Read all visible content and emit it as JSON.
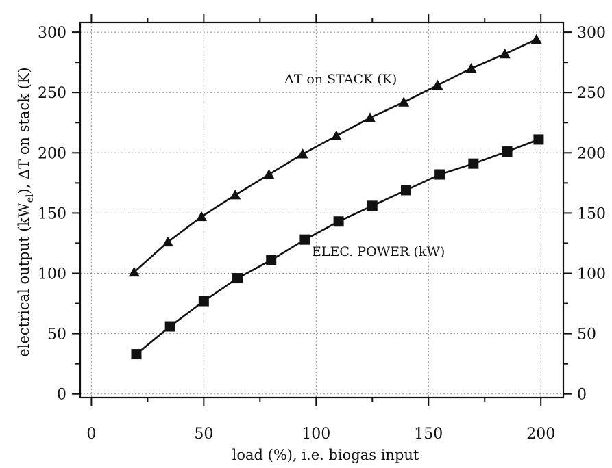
{
  "chart_data": {
    "type": "line",
    "x_label": "load (%), i.e. biogas input",
    "y_label_left": "electrical output (kW",
    "y_label_left_sub": "el",
    "y_label_left_tail": "), ΔT on stack (K)",
    "xlim": [
      -5,
      210
    ],
    "ylim": [
      -3,
      308
    ],
    "x_ticks": [
      0,
      50,
      100,
      150,
      200
    ],
    "y_ticks_left": [
      0,
      50,
      100,
      150,
      200,
      250,
      300
    ],
    "y_ticks_right": [
      0,
      50,
      100,
      150,
      200,
      250,
      300
    ],
    "grid": true,
    "series": [
      {
        "name": "ΔT on STACK (K)",
        "marker": "triangle",
        "x": [
          19,
          34,
          49,
          64,
          79,
          94,
          109,
          124,
          139,
          154,
          169,
          184,
          198
        ],
        "y": [
          101,
          126,
          147,
          165,
          182,
          199,
          214,
          229,
          242,
          256,
          270,
          282,
          294
        ]
      },
      {
        "name": "ELEC. POWER (kW)",
        "marker": "square",
        "x": [
          20,
          35,
          50,
          65,
          80,
          95,
          110,
          125,
          140,
          155,
          170,
          185,
          199
        ],
        "y": [
          33,
          56,
          77,
          96,
          111,
          128,
          143,
          156,
          169,
          182,
          191,
          201,
          211
        ]
      }
    ]
  }
}
